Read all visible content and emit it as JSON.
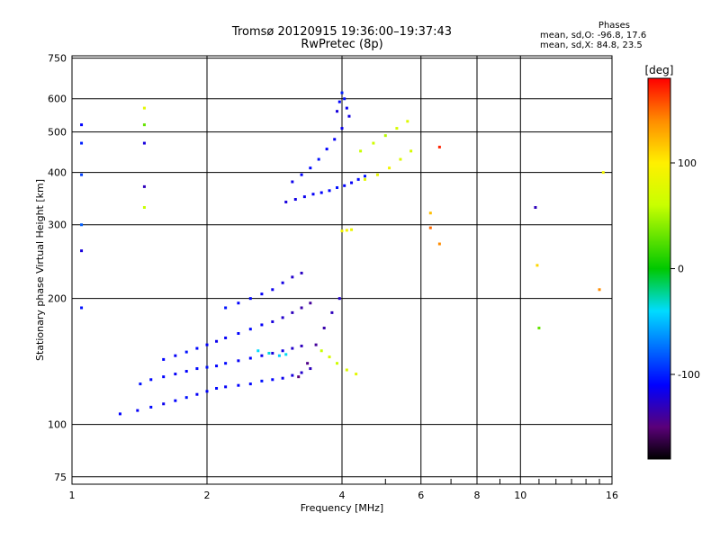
{
  "title_line1": "Tromsø 20120915 19:36:00–19:37:43",
  "title_line2": "RwPretec (8p)",
  "stats": {
    "heading": "Phases",
    "line_o": "mean, sd,O: -96.8, 17.6",
    "line_x": "mean, sd,X:  84.8, 23.5"
  },
  "colorbar": {
    "label": "[deg]",
    "ticks": [
      {
        "value": 100,
        "label": "100"
      },
      {
        "value": 0,
        "label": "0"
      },
      {
        "value": -100,
        "label": "-100"
      }
    ],
    "range": [
      -180,
      180
    ]
  },
  "chart_data": {
    "type": "scatter",
    "title": "Tromsø 20120915 19:36:00–19:37:43",
    "subtitle": "RwPretec (8p)",
    "xlabel": "Frequency [MHz]",
    "ylabel": "Stationary phase Virtual Height [km]",
    "xscale": "log",
    "yscale": "log",
    "xlim": [
      1,
      16
    ],
    "ylim": [
      72,
      760
    ],
    "grid": true,
    "x_ticks": [
      1,
      2,
      4,
      6,
      8,
      10,
      16
    ],
    "x_tick_labels": [
      "1",
      "2",
      "4",
      "6",
      "8",
      "10",
      "16"
    ],
    "y_ticks": [
      75,
      100,
      200,
      300,
      400,
      500,
      600,
      750
    ],
    "y_tick_labels": [
      "75",
      "100",
      "200",
      "300",
      "400",
      "500",
      "600",
      "750"
    ],
    "color_scale": "rainbow, black at -180 deg to red at +180 deg",
    "series": [
      {
        "x": [
          1.28,
          1.4,
          1.5,
          1.6,
          1.7,
          1.8,
          1.9,
          2.0,
          2.1,
          2.2,
          2.35,
          2.5,
          2.65,
          2.8,
          2.95,
          3.1,
          3.25,
          3.4
        ],
        "y": [
          106,
          108,
          110,
          112,
          114,
          116,
          118,
          120,
          122,
          123,
          124,
          125,
          127,
          128,
          129,
          131,
          133,
          136
        ],
        "phase": [
          -110,
          -112,
          -108,
          -115,
          -110,
          -105,
          -112,
          -110,
          -108,
          -112,
          -110,
          -108,
          -105,
          -110,
          -115,
          -120,
          -125,
          -130
        ]
      },
      {
        "x": [
          1.42,
          1.5,
          1.6,
          1.7,
          1.8,
          1.9,
          2.0,
          2.1,
          2.2,
          2.35,
          2.5,
          2.65,
          2.8,
          2.95,
          3.1,
          3.25
        ],
        "y": [
          125,
          128,
          130,
          132,
          134,
          136,
          137,
          138,
          140,
          142,
          144,
          146,
          148,
          150,
          152,
          154
        ],
        "phase": [
          -105,
          -108,
          -110,
          -112,
          -110,
          -108,
          -105,
          -110,
          -108,
          -112,
          -110,
          -115,
          -120,
          -118,
          -125,
          -130
        ]
      },
      {
        "x": [
          1.6,
          1.7,
          1.8,
          1.9,
          2.0,
          2.1,
          2.2,
          2.35,
          2.5,
          2.65,
          2.8,
          2.95,
          3.1,
          3.25,
          3.4
        ],
        "y": [
          143,
          146,
          149,
          152,
          155,
          158,
          161,
          165,
          169,
          173,
          176,
          180,
          185,
          190,
          195
        ],
        "phase": [
          -110,
          -112,
          -105,
          -108,
          -110,
          -115,
          -112,
          -110,
          -108,
          -112,
          -120,
          -125,
          -130,
          -135,
          -140
        ]
      },
      {
        "x": [
          2.2,
          2.35,
          2.5,
          2.65,
          2.8,
          2.95,
          3.1,
          3.25
        ],
        "y": [
          190,
          195,
          200,
          205,
          210,
          218,
          225,
          230
        ],
        "phase": [
          -105,
          -110,
          -108,
          -112,
          -115,
          -118,
          -125,
          -128
        ]
      },
      {
        "x": [
          2.6,
          2.75,
          2.9,
          3.0
        ],
        "y": [
          150,
          148,
          146,
          147
        ],
        "phase": [
          -40,
          -35,
          -45,
          -38
        ]
      },
      {
        "x": [
          3.2,
          3.35,
          3.5,
          3.65,
          3.8,
          3.95
        ],
        "y": [
          130,
          140,
          155,
          170,
          185,
          200
        ],
        "phase": [
          -150,
          -145,
          -140,
          -135,
          -130,
          -125
        ]
      },
      {
        "x": [
          3.6,
          3.75,
          3.9,
          4.1,
          4.3
        ],
        "y": [
          150,
          145,
          140,
          135,
          132
        ],
        "phase": [
          60,
          70,
          65,
          75,
          80
        ]
      },
      {
        "x": [
          3.0,
          3.15,
          3.3,
          3.45,
          3.6,
          3.75,
          3.9,
          4.05,
          4.2,
          4.35,
          4.5
        ],
        "y": [
          340,
          345,
          350,
          355,
          358,
          362,
          368,
          372,
          378,
          385,
          392
        ],
        "phase": [
          -120,
          -118,
          -115,
          -112,
          -110,
          -108,
          -105,
          -110,
          -112,
          -108,
          -105
        ]
      },
      {
        "x": [
          3.1,
          3.25,
          3.4,
          3.55,
          3.7,
          3.85,
          4.0,
          4.15
        ],
        "y": [
          380,
          395,
          410,
          430,
          455,
          480,
          510,
          545
        ],
        "phase": [
          -115,
          -110,
          -108,
          -105,
          -110,
          -112,
          -115,
          -118
        ]
      },
      {
        "x": [
          3.9,
          3.95,
          4.0,
          4.05,
          4.1
        ],
        "y": [
          560,
          590,
          620,
          600,
          570
        ],
        "phase": [
          -120,
          -110,
          -100,
          -105,
          -115
        ]
      },
      {
        "x": [
          4.5,
          4.8,
          5.1,
          5.4,
          5.7
        ],
        "y": [
          385,
          395,
          410,
          430,
          450
        ],
        "phase": [
          80,
          85,
          90,
          75,
          70
        ]
      },
      {
        "x": [
          4.4,
          4.7,
          5.0,
          5.3,
          5.6
        ],
        "y": [
          450,
          470,
          490,
          510,
          530
        ],
        "phase": [
          60,
          65,
          55,
          70,
          75
        ]
      },
      {
        "x": [
          4.0,
          4.1,
          4.2
        ],
        "y": [
          290,
          291,
          292
        ],
        "phase": [
          90,
          95,
          85
        ]
      },
      {
        "x": [
          1.05,
          1.05,
          1.05,
          1.05,
          1.05,
          1.05
        ],
        "y": [
          520,
          470,
          395,
          300,
          260,
          190
        ],
        "phase": [
          -110,
          -100,
          -90,
          -80,
          -120,
          -105
        ]
      },
      {
        "x": [
          1.45,
          1.45,
          1.45,
          1.45,
          1.45
        ],
        "y": [
          570,
          520,
          470,
          370,
          330
        ],
        "phase": [
          80,
          30,
          -120,
          -130,
          60
        ]
      },
      {
        "x": [
          6.3,
          6.3,
          6.6,
          6.6
        ],
        "y": [
          320,
          295,
          460,
          270
        ],
        "phase": [
          120,
          150,
          170,
          140
        ]
      },
      {
        "x": [
          10.8,
          10.9,
          11.0,
          15.0,
          15.3
        ],
        "y": [
          330,
          240,
          170,
          210,
          400
        ],
        "phase": [
          -130,
          110,
          30,
          140,
          90
        ]
      }
    ]
  }
}
